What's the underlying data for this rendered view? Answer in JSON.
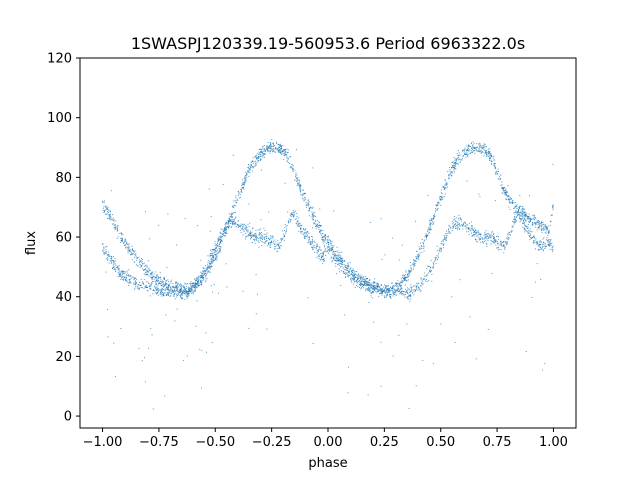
{
  "chart_data": {
    "type": "scatter",
    "title": "1SWASPJ120339.19-560953.6 Period 6963322.0s",
    "xlabel": "phase",
    "ylabel": "flux",
    "xlim": [
      -1.1,
      1.1
    ],
    "ylim": [
      -4,
      120
    ],
    "x_ticks": [
      -1.0,
      -0.75,
      -0.5,
      -0.25,
      0.0,
      0.25,
      0.5,
      0.75,
      1.0
    ],
    "x_tick_labels": [
      "−1.00",
      "−0.75",
      "−0.50",
      "−0.25",
      "0.00",
      "0.25",
      "0.50",
      "0.75",
      "1.00"
    ],
    "y_ticks": [
      0,
      20,
      40,
      60,
      80,
      100,
      120
    ],
    "y_tick_labels": [
      "0",
      "20",
      "40",
      "60",
      "80",
      "100",
      "120"
    ],
    "grid": false,
    "legend": "none",
    "marker_color": "#1f77b4",
    "series": [
      {
        "description_of_trend": "phase-folded light curve, two cycles, upper and lower branches",
        "x": [
          -1.0,
          -0.98,
          -0.96,
          -0.94,
          -0.92,
          -0.9,
          -0.88,
          -0.86,
          -0.84,
          -0.82,
          -0.8,
          -0.78,
          -0.76,
          -0.74,
          -0.72,
          -0.7,
          -0.68,
          -0.66,
          -0.64,
          -0.62,
          -0.6,
          -0.58,
          -0.56,
          -0.54,
          -0.52,
          -0.5,
          -0.48,
          -0.46,
          -0.44,
          -0.42,
          -0.4,
          -0.38,
          -0.36,
          -0.34,
          -0.32,
          -0.3,
          -0.28,
          -0.26,
          -0.24,
          -0.22,
          -0.2,
          -0.18,
          -0.16,
          -0.14,
          -0.12,
          -0.1,
          -0.08,
          -0.06,
          -0.04,
          -0.02,
          0.0,
          0.02,
          0.04,
          0.06,
          0.08,
          0.1,
          0.12,
          0.14,
          0.16,
          0.18,
          0.2,
          0.22,
          0.24,
          0.26,
          0.28,
          0.3,
          0.32,
          0.34,
          0.36,
          0.38,
          0.4,
          0.42,
          0.44,
          0.46,
          0.48,
          0.5,
          0.52,
          0.54,
          0.56,
          0.58,
          0.6,
          0.62,
          0.64,
          0.66,
          0.68,
          0.7,
          0.72,
          0.74,
          0.76,
          0.78,
          0.8,
          0.82,
          0.84,
          0.86,
          0.88,
          0.9,
          0.92,
          0.94,
          0.96,
          0.98,
          1.0
        ],
        "y_upper": [
          71,
          69,
          66,
          63,
          60,
          58,
          56,
          54,
          52,
          50,
          49,
          47,
          46,
          45,
          44,
          43,
          43,
          42,
          42,
          42,
          43,
          44,
          46,
          48,
          51,
          54,
          57,
          61,
          65,
          69,
          73,
          77,
          81,
          84,
          86,
          88,
          89,
          90,
          90,
          90,
          89,
          87,
          84,
          80,
          76,
          73,
          69,
          66,
          63,
          60,
          58,
          56,
          54,
          52,
          50,
          49,
          47,
          46,
          45,
          44,
          43,
          43,
          42,
          42,
          42,
          43,
          44,
          46,
          48,
          51,
          54,
          57,
          61,
          65,
          69,
          73,
          77,
          81,
          84,
          86,
          88,
          89,
          90,
          90,
          90,
          89,
          87,
          84,
          80,
          76,
          73,
          71,
          69,
          68,
          67,
          66,
          65,
          64,
          63,
          62,
          71
        ],
        "y_lower": [
          57,
          54,
          52,
          50,
          48,
          47,
          46,
          45,
          44,
          44,
          43,
          43,
          42,
          42,
          42,
          42,
          42,
          41,
          41,
          42,
          43,
          45,
          47,
          50,
          53,
          56,
          60,
          63,
          65,
          65,
          64,
          63,
          62,
          61,
          60,
          60,
          60,
          59,
          58,
          57,
          60,
          64,
          68,
          66,
          63,
          61,
          59,
          57,
          55,
          53,
          57,
          54,
          52,
          50,
          48,
          47,
          46,
          45,
          44,
          44,
          43,
          43,
          42,
          42,
          42,
          42,
          42,
          41,
          41,
          42,
          43,
          45,
          47,
          50,
          53,
          56,
          60,
          63,
          65,
          65,
          64,
          63,
          62,
          61,
          60,
          60,
          60,
          59,
          58,
          57,
          60,
          64,
          68,
          66,
          63,
          61,
          59,
          57,
          57,
          58,
          57
        ]
      }
    ]
  }
}
